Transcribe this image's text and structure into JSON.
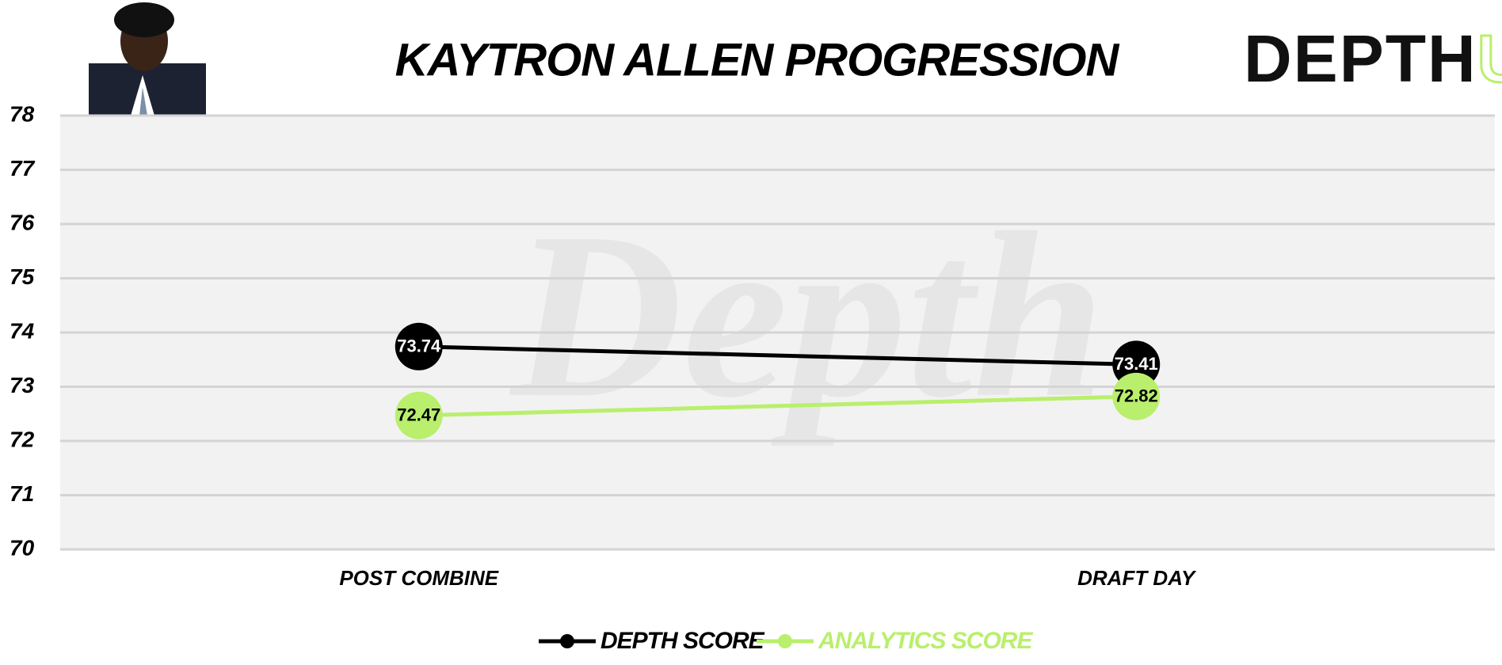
{
  "chart_data": {
    "type": "line",
    "title": "KAYTRON ALLEN PROGRESSION",
    "logo": [
      "DEPTH",
      "U"
    ],
    "watermark": "Depth",
    "categories": [
      "POST COMBINE",
      "DRAFT DAY"
    ],
    "series": [
      {
        "name": "DEPTH SCORE",
        "color": "#000000",
        "values": [
          73.74,
          73.41
        ]
      },
      {
        "name": "ANALYTICS SCORE",
        "color": "#b9ef6c",
        "values": [
          72.47,
          72.82
        ]
      }
    ],
    "ylim": [
      70,
      78
    ],
    "yticks": [
      70,
      71,
      72,
      73,
      74,
      75,
      76,
      77,
      78
    ],
    "grid": true
  }
}
